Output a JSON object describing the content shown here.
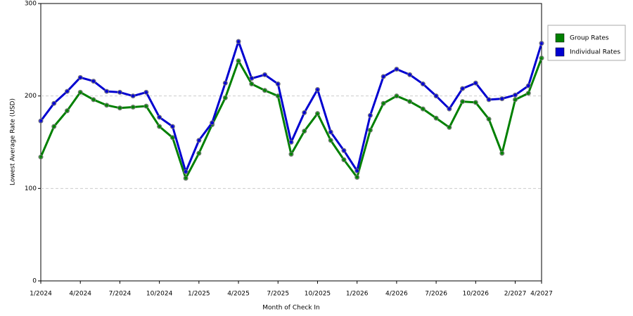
{
  "chart_data": {
    "type": "line",
    "x_label": "Month of Check In",
    "y_label": "Lowest Average Rate (USD)",
    "categories": [
      "1/2024",
      null,
      null,
      "4/2024",
      null,
      null,
      "7/2024",
      null,
      null,
      "10/2024",
      null,
      null,
      "1/2025",
      null,
      null,
      "4/2025",
      null,
      null,
      "7/2025",
      null,
      null,
      "10/2025",
      null,
      null,
      "1/2026",
      null,
      null,
      "4/2026",
      null,
      null,
      "7/2026",
      null,
      null,
      "10/2026",
      null,
      null,
      "2/2027",
      null,
      "4/2027"
    ],
    "series": [
      {
        "name": "Group Rates",
        "color": "#008000",
        "values": [
          134,
          167,
          184,
          204,
          196,
          190,
          187,
          188,
          189,
          167,
          155,
          111,
          138,
          169,
          198,
          238,
          213,
          206,
          200,
          137,
          162,
          181,
          152,
          131,
          112,
          163,
          192,
          200,
          194,
          186,
          176,
          166,
          194,
          193,
          175,
          138,
          196,
          203,
          241
        ]
      },
      {
        "name": "Individual Rates",
        "color": "#0000d0",
        "values": [
          173,
          192,
          205,
          220,
          216,
          205,
          204,
          200,
          204,
          177,
          167,
          118,
          152,
          171,
          214,
          259,
          219,
          223,
          213,
          150,
          182,
          207,
          161,
          141,
          119,
          179,
          221,
          229,
          223,
          213,
          200,
          186,
          208,
          214,
          196,
          197,
          201,
          211,
          257
        ]
      }
    ],
    "ylim": [
      0,
      300
    ],
    "yticks": [
      0,
      100,
      200,
      300
    ],
    "grid": true,
    "legend": "right"
  }
}
